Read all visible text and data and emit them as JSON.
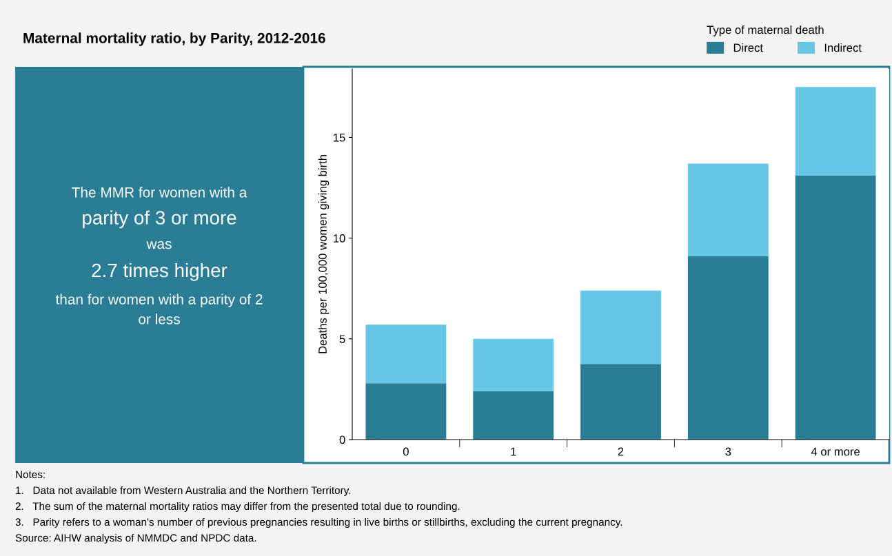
{
  "chart_data": [
    {
      "type": "other",
      "annotations": [
        "The MMR for women with a",
        "parity of 3 or more",
        "was",
        "2.7 times higher",
        "than for women with a parity of 2",
        "or less"
      ]
    },
    {
      "type": "bar",
      "title": "Maternal mortality ratio, by Parity, 2012-2016",
      "ylabel": "Deaths per 100,000 women giving birth",
      "legend_title": "Type of maternal death",
      "categories": [
        "0",
        "1",
        "2",
        "3",
        "4 or more"
      ],
      "stacked": true,
      "series": [
        {
          "name": "Direct",
          "color": "#2a7d95",
          "values": [
            2.8,
            2.4,
            3.75,
            9.1,
            13.1
          ]
        },
        {
          "name": "Indirect",
          "color": "#67c5e6",
          "values": [
            2.9,
            2.6,
            3.65,
            4.6,
            4.4
          ]
        }
      ],
      "ylim": [
        0,
        18.4
      ],
      "yticks": [
        0,
        5,
        10,
        15
      ],
      "grid": false,
      "legend": "top right",
      "annotations": [
        "Notes:",
        "1.   Data not available from Western Australia and the Northern Territory.",
        "2.   The sum of the maternal mortality ratios may differ from the presented total due to rounding.",
        "3.   Parity refers to a woman's number of previous pregnancies resulting in live births or stillbirths, excluding the current pregnancy.",
        "Source: AIHW analysis of NMMDC and NPDC data."
      ]
    }
  ]
}
